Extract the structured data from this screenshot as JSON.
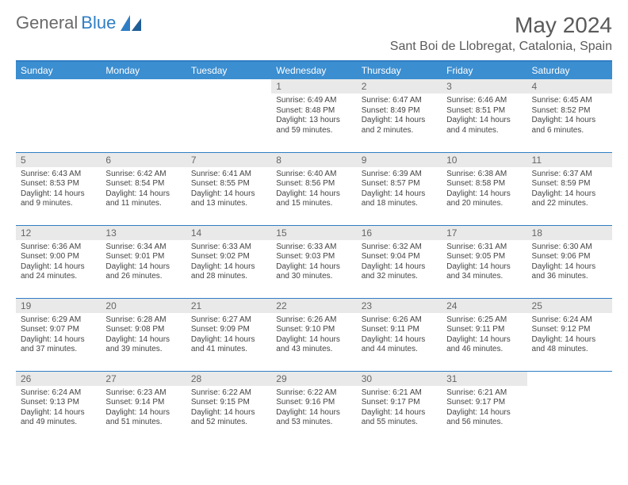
{
  "logo": {
    "general": "General",
    "blue": "Blue"
  },
  "title": "May 2024",
  "location": "Sant Boi de Llobregat, Catalonia, Spain",
  "colors": {
    "header_bg": "#3b8ed0",
    "rule": "#2f7ec4",
    "daynum_bg": "#e9e9e9",
    "text": "#444444",
    "title_color": "#5a5a5a"
  },
  "weekdays": [
    "Sunday",
    "Monday",
    "Tuesday",
    "Wednesday",
    "Thursday",
    "Friday",
    "Saturday"
  ],
  "weeks": [
    [
      {
        "empty": true
      },
      {
        "empty": true
      },
      {
        "empty": true
      },
      {
        "day": "1",
        "sunrise": "Sunrise: 6:49 AM",
        "sunset": "Sunset: 8:48 PM",
        "daylight": "Daylight: 13 hours and 59 minutes."
      },
      {
        "day": "2",
        "sunrise": "Sunrise: 6:47 AM",
        "sunset": "Sunset: 8:49 PM",
        "daylight": "Daylight: 14 hours and 2 minutes."
      },
      {
        "day": "3",
        "sunrise": "Sunrise: 6:46 AM",
        "sunset": "Sunset: 8:51 PM",
        "daylight": "Daylight: 14 hours and 4 minutes."
      },
      {
        "day": "4",
        "sunrise": "Sunrise: 6:45 AM",
        "sunset": "Sunset: 8:52 PM",
        "daylight": "Daylight: 14 hours and 6 minutes."
      }
    ],
    [
      {
        "day": "5",
        "sunrise": "Sunrise: 6:43 AM",
        "sunset": "Sunset: 8:53 PM",
        "daylight": "Daylight: 14 hours and 9 minutes."
      },
      {
        "day": "6",
        "sunrise": "Sunrise: 6:42 AM",
        "sunset": "Sunset: 8:54 PM",
        "daylight": "Daylight: 14 hours and 11 minutes."
      },
      {
        "day": "7",
        "sunrise": "Sunrise: 6:41 AM",
        "sunset": "Sunset: 8:55 PM",
        "daylight": "Daylight: 14 hours and 13 minutes."
      },
      {
        "day": "8",
        "sunrise": "Sunrise: 6:40 AM",
        "sunset": "Sunset: 8:56 PM",
        "daylight": "Daylight: 14 hours and 15 minutes."
      },
      {
        "day": "9",
        "sunrise": "Sunrise: 6:39 AM",
        "sunset": "Sunset: 8:57 PM",
        "daylight": "Daylight: 14 hours and 18 minutes."
      },
      {
        "day": "10",
        "sunrise": "Sunrise: 6:38 AM",
        "sunset": "Sunset: 8:58 PM",
        "daylight": "Daylight: 14 hours and 20 minutes."
      },
      {
        "day": "11",
        "sunrise": "Sunrise: 6:37 AM",
        "sunset": "Sunset: 8:59 PM",
        "daylight": "Daylight: 14 hours and 22 minutes."
      }
    ],
    [
      {
        "day": "12",
        "sunrise": "Sunrise: 6:36 AM",
        "sunset": "Sunset: 9:00 PM",
        "daylight": "Daylight: 14 hours and 24 minutes."
      },
      {
        "day": "13",
        "sunrise": "Sunrise: 6:34 AM",
        "sunset": "Sunset: 9:01 PM",
        "daylight": "Daylight: 14 hours and 26 minutes."
      },
      {
        "day": "14",
        "sunrise": "Sunrise: 6:33 AM",
        "sunset": "Sunset: 9:02 PM",
        "daylight": "Daylight: 14 hours and 28 minutes."
      },
      {
        "day": "15",
        "sunrise": "Sunrise: 6:33 AM",
        "sunset": "Sunset: 9:03 PM",
        "daylight": "Daylight: 14 hours and 30 minutes."
      },
      {
        "day": "16",
        "sunrise": "Sunrise: 6:32 AM",
        "sunset": "Sunset: 9:04 PM",
        "daylight": "Daylight: 14 hours and 32 minutes."
      },
      {
        "day": "17",
        "sunrise": "Sunrise: 6:31 AM",
        "sunset": "Sunset: 9:05 PM",
        "daylight": "Daylight: 14 hours and 34 minutes."
      },
      {
        "day": "18",
        "sunrise": "Sunrise: 6:30 AM",
        "sunset": "Sunset: 9:06 PM",
        "daylight": "Daylight: 14 hours and 36 minutes."
      }
    ],
    [
      {
        "day": "19",
        "sunrise": "Sunrise: 6:29 AM",
        "sunset": "Sunset: 9:07 PM",
        "daylight": "Daylight: 14 hours and 37 minutes."
      },
      {
        "day": "20",
        "sunrise": "Sunrise: 6:28 AM",
        "sunset": "Sunset: 9:08 PM",
        "daylight": "Daylight: 14 hours and 39 minutes."
      },
      {
        "day": "21",
        "sunrise": "Sunrise: 6:27 AM",
        "sunset": "Sunset: 9:09 PM",
        "daylight": "Daylight: 14 hours and 41 minutes."
      },
      {
        "day": "22",
        "sunrise": "Sunrise: 6:26 AM",
        "sunset": "Sunset: 9:10 PM",
        "daylight": "Daylight: 14 hours and 43 minutes."
      },
      {
        "day": "23",
        "sunrise": "Sunrise: 6:26 AM",
        "sunset": "Sunset: 9:11 PM",
        "daylight": "Daylight: 14 hours and 44 minutes."
      },
      {
        "day": "24",
        "sunrise": "Sunrise: 6:25 AM",
        "sunset": "Sunset: 9:11 PM",
        "daylight": "Daylight: 14 hours and 46 minutes."
      },
      {
        "day": "25",
        "sunrise": "Sunrise: 6:24 AM",
        "sunset": "Sunset: 9:12 PM",
        "daylight": "Daylight: 14 hours and 48 minutes."
      }
    ],
    [
      {
        "day": "26",
        "sunrise": "Sunrise: 6:24 AM",
        "sunset": "Sunset: 9:13 PM",
        "daylight": "Daylight: 14 hours and 49 minutes."
      },
      {
        "day": "27",
        "sunrise": "Sunrise: 6:23 AM",
        "sunset": "Sunset: 9:14 PM",
        "daylight": "Daylight: 14 hours and 51 minutes."
      },
      {
        "day": "28",
        "sunrise": "Sunrise: 6:22 AM",
        "sunset": "Sunset: 9:15 PM",
        "daylight": "Daylight: 14 hours and 52 minutes."
      },
      {
        "day": "29",
        "sunrise": "Sunrise: 6:22 AM",
        "sunset": "Sunset: 9:16 PM",
        "daylight": "Daylight: 14 hours and 53 minutes."
      },
      {
        "day": "30",
        "sunrise": "Sunrise: 6:21 AM",
        "sunset": "Sunset: 9:17 PM",
        "daylight": "Daylight: 14 hours and 55 minutes."
      },
      {
        "day": "31",
        "sunrise": "Sunrise: 6:21 AM",
        "sunset": "Sunset: 9:17 PM",
        "daylight": "Daylight: 14 hours and 56 minutes."
      },
      {
        "empty": true
      }
    ]
  ]
}
